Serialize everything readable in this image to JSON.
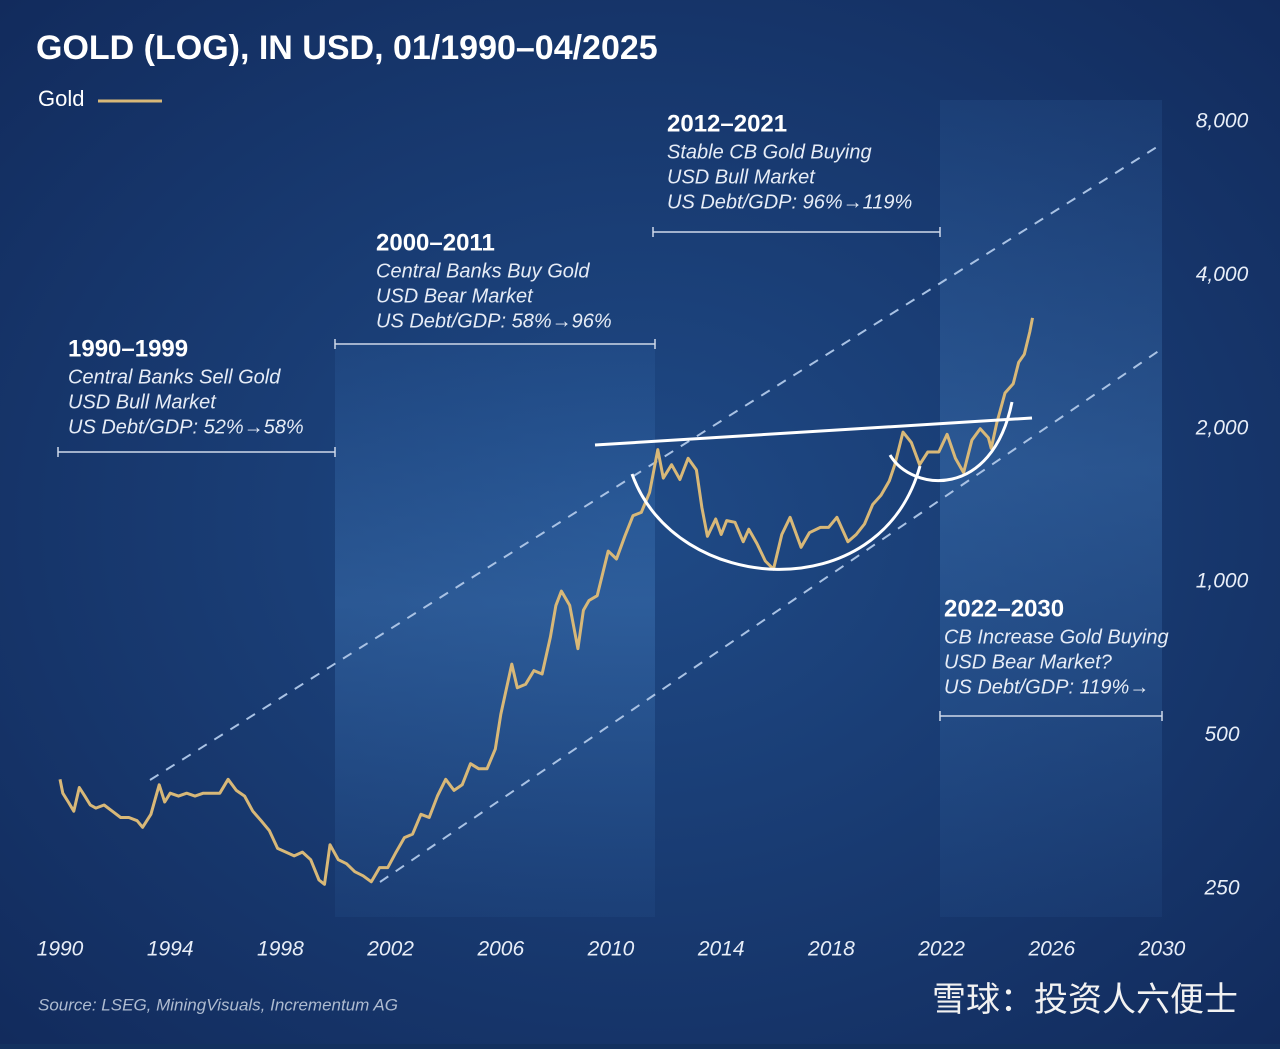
{
  "chart_data": {
    "type": "line",
    "title": "GOLD (LOG), IN USD, 01/1990–04/2025",
    "source": "Source: LSEG, MiningVisuals, Incrementum AG",
    "watermark": "雪球：投资人六便士",
    "log_scale": true,
    "legend": "top-left",
    "xlim": [
      1990,
      2030
    ],
    "xticks": [
      1990,
      1994,
      1998,
      2002,
      2006,
      2010,
      2014,
      2018,
      2022,
      2026,
      2030
    ],
    "ylim": [
      220,
      9000
    ],
    "yticks": [
      {
        "value": 8000,
        "label": "8,000"
      },
      {
        "value": 4000,
        "label": "4,000"
      },
      {
        "value": 2000,
        "label": "2,000"
      },
      {
        "value": 1000,
        "label": "1,000"
      },
      500,
      250
    ],
    "annotations": [
      {
        "title": "1990–1999",
        "lines": [
          "Central Banks Sell Gold",
          "USD Bull Market",
          "US Debt/GDP: 52%→58%"
        ]
      },
      {
        "title": "2000–2011",
        "lines": [
          "Central Banks Buy Gold",
          "USD Bear Market",
          "US Debt/GDP: 58%→96%"
        ]
      },
      {
        "title": "2012–2021",
        "lines": [
          "Stable CB Gold Buying",
          "USD Bull Market",
          "US Debt/GDP: 96%→119%"
        ]
      },
      {
        "title": "2022–2030",
        "lines": [
          "CB Increase Gold Buying",
          "USD Bear Market?",
          "US Debt/GDP: 119%→"
        ]
      }
    ],
    "x": [
      1990.0,
      1990.1,
      1990.3,
      1990.5,
      1990.7,
      1990.9,
      1991.1,
      1991.3,
      1991.6,
      1991.9,
      1992.2,
      1992.5,
      1992.8,
      1993.0,
      1993.3,
      1993.6,
      1993.8,
      1994.0,
      1994.3,
      1994.6,
      1994.9,
      1995.2,
      1995.5,
      1995.8,
      1996.1,
      1996.4,
      1996.7,
      1997.0,
      1997.3,
      1997.6,
      1997.9,
      1998.2,
      1998.5,
      1998.8,
      1999.1,
      1999.4,
      1999.6,
      1999.8,
      2000.1,
      2000.4,
      2000.7,
      2001.0,
      2001.3,
      2001.6,
      2001.9,
      2002.2,
      2002.5,
      2002.8,
      2003.1,
      2003.4,
      2003.7,
      2004.0,
      2004.3,
      2004.6,
      2004.9,
      2005.2,
      2005.5,
      2005.8,
      2006.0,
      2006.4,
      2006.6,
      2006.9,
      2007.2,
      2007.5,
      2007.8,
      2008.0,
      2008.2,
      2008.5,
      2008.8,
      2009.0,
      2009.2,
      2009.5,
      2009.9,
      2010.2,
      2010.5,
      2010.8,
      2011.1,
      2011.4,
      2011.7,
      2011.9,
      2012.2,
      2012.5,
      2012.8,
      2013.1,
      2013.3,
      2013.5,
      2013.8,
      2014.0,
      2014.2,
      2014.5,
      2014.8,
      2015.0,
      2015.3,
      2015.6,
      2015.9,
      2016.2,
      2016.5,
      2016.9,
      2017.2,
      2017.6,
      2017.9,
      2018.2,
      2018.6,
      2018.9,
      2019.2,
      2019.5,
      2019.8,
      2020.1,
      2020.3,
      2020.6,
      2020.9,
      2021.2,
      2021.5,
      2021.9,
      2022.2,
      2022.5,
      2022.8,
      2023.1,
      2023.4,
      2023.7,
      2023.8,
      2024.0,
      2024.3,
      2024.6,
      2024.8,
      2025.0,
      2025.2,
      2025.3
    ],
    "series": [
      {
        "name": "Gold",
        "color": "#d8b878",
        "values": [
          410,
          385,
          370,
          355,
          395,
          380,
          365,
          360,
          365,
          355,
          345,
          345,
          340,
          330,
          350,
          400,
          370,
          385,
          380,
          385,
          380,
          385,
          385,
          385,
          410,
          390,
          380,
          355,
          340,
          325,
          300,
          295,
          290,
          295,
          285,
          260,
          255,
          305,
          285,
          280,
          270,
          265,
          258,
          275,
          275,
          295,
          315,
          320,
          350,
          345,
          380,
          410,
          390,
          400,
          440,
          430,
          430,
          470,
          550,
          690,
          620,
          630,
          670,
          660,
          780,
          900,
          960,
          900,
          740,
          880,
          920,
          940,
          1150,
          1110,
          1230,
          1350,
          1370,
          1500,
          1820,
          1600,
          1700,
          1590,
          1750,
          1660,
          1400,
          1230,
          1330,
          1240,
          1320,
          1310,
          1200,
          1270,
          1190,
          1100,
          1060,
          1240,
          1340,
          1170,
          1250,
          1280,
          1280,
          1340,
          1200,
          1240,
          1300,
          1420,
          1480,
          1580,
          1700,
          1970,
          1880,
          1700,
          1800,
          1800,
          1950,
          1750,
          1640,
          1900,
          2000,
          1920,
          1830,
          2050,
          2350,
          2450,
          2700,
          2800,
          3100,
          3300
        ]
      }
    ]
  }
}
